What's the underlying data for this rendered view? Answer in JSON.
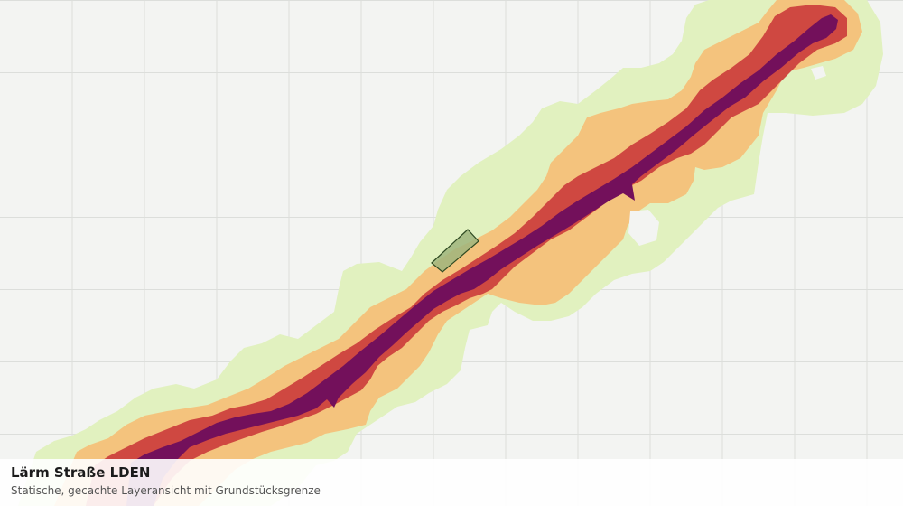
{
  "layer": {
    "title": "Lärm Straße LDEN",
    "subtitle": "Statische, gecachte Layeransicht mit Grundstücksgrenze"
  },
  "colors": {
    "background": "#f3f4f2",
    "grid": "#dcdedb",
    "band_outer": "#e1f1bf",
    "band_mid": "#f4c37d",
    "band_inner": "#cf4841",
    "band_core": "#73105b",
    "parcel_fill": "#9fb57c",
    "parcel_stroke": "#2f4a22"
  }
}
